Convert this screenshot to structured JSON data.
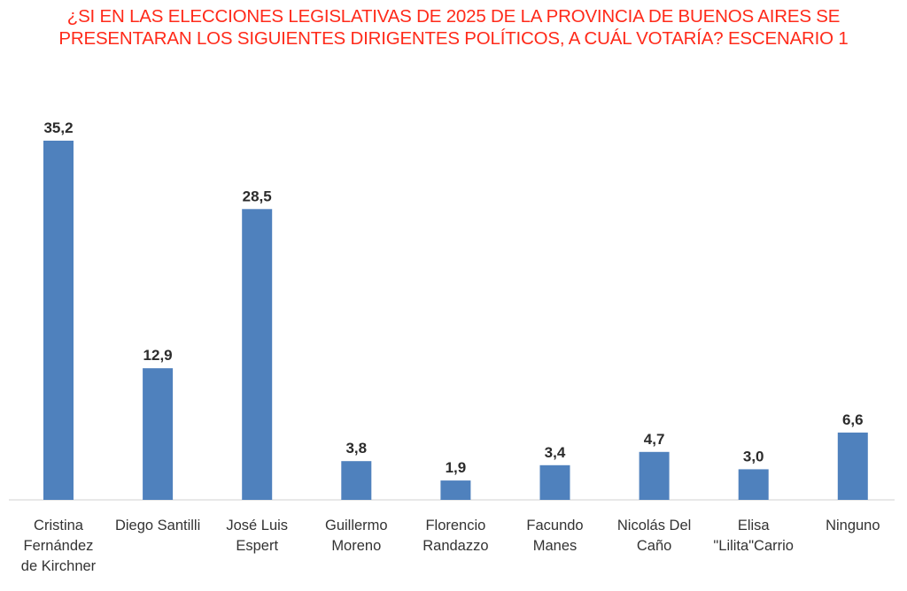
{
  "chart_data": {
    "type": "bar",
    "title_lines": [
      "¿SI EN LAS ELECCIONES LEGISLATIVAS DE 2025 DE LA PROVINCIA DE BUENOS AIRES SE",
      "PRESENTARAN LOS SIGUIENTES DIRIGENTES POLÍTICOS, A CUÁL VOTARÍA? ESCENARIO 1"
    ],
    "categories": [
      [
        "Cristina",
        "Fernández",
        "de Kirchner"
      ],
      [
        "Diego Santilli"
      ],
      [
        "José Luis",
        "Espert"
      ],
      [
        "Guillermo",
        "Moreno"
      ],
      [
        "Florencio",
        "Randazzo"
      ],
      [
        "Facundo",
        "Manes"
      ],
      [
        "Nicolás Del",
        "Caño"
      ],
      [
        "Elisa",
        "\"Lilita\"Carrio"
      ],
      [
        "Ninguno"
      ]
    ],
    "values": [
      35.2,
      12.9,
      28.5,
      3.8,
      1.9,
      3.4,
      4.7,
      3.0,
      6.6
    ],
    "value_labels": [
      "35,2",
      "12,9",
      "28,5",
      "3,8",
      "1,9",
      "3,4",
      "4,7",
      "3,0",
      "6,6"
    ],
    "ylim": [
      0,
      35.2
    ],
    "bar_color": "#4f81bd",
    "grid": false,
    "legend": "none"
  }
}
